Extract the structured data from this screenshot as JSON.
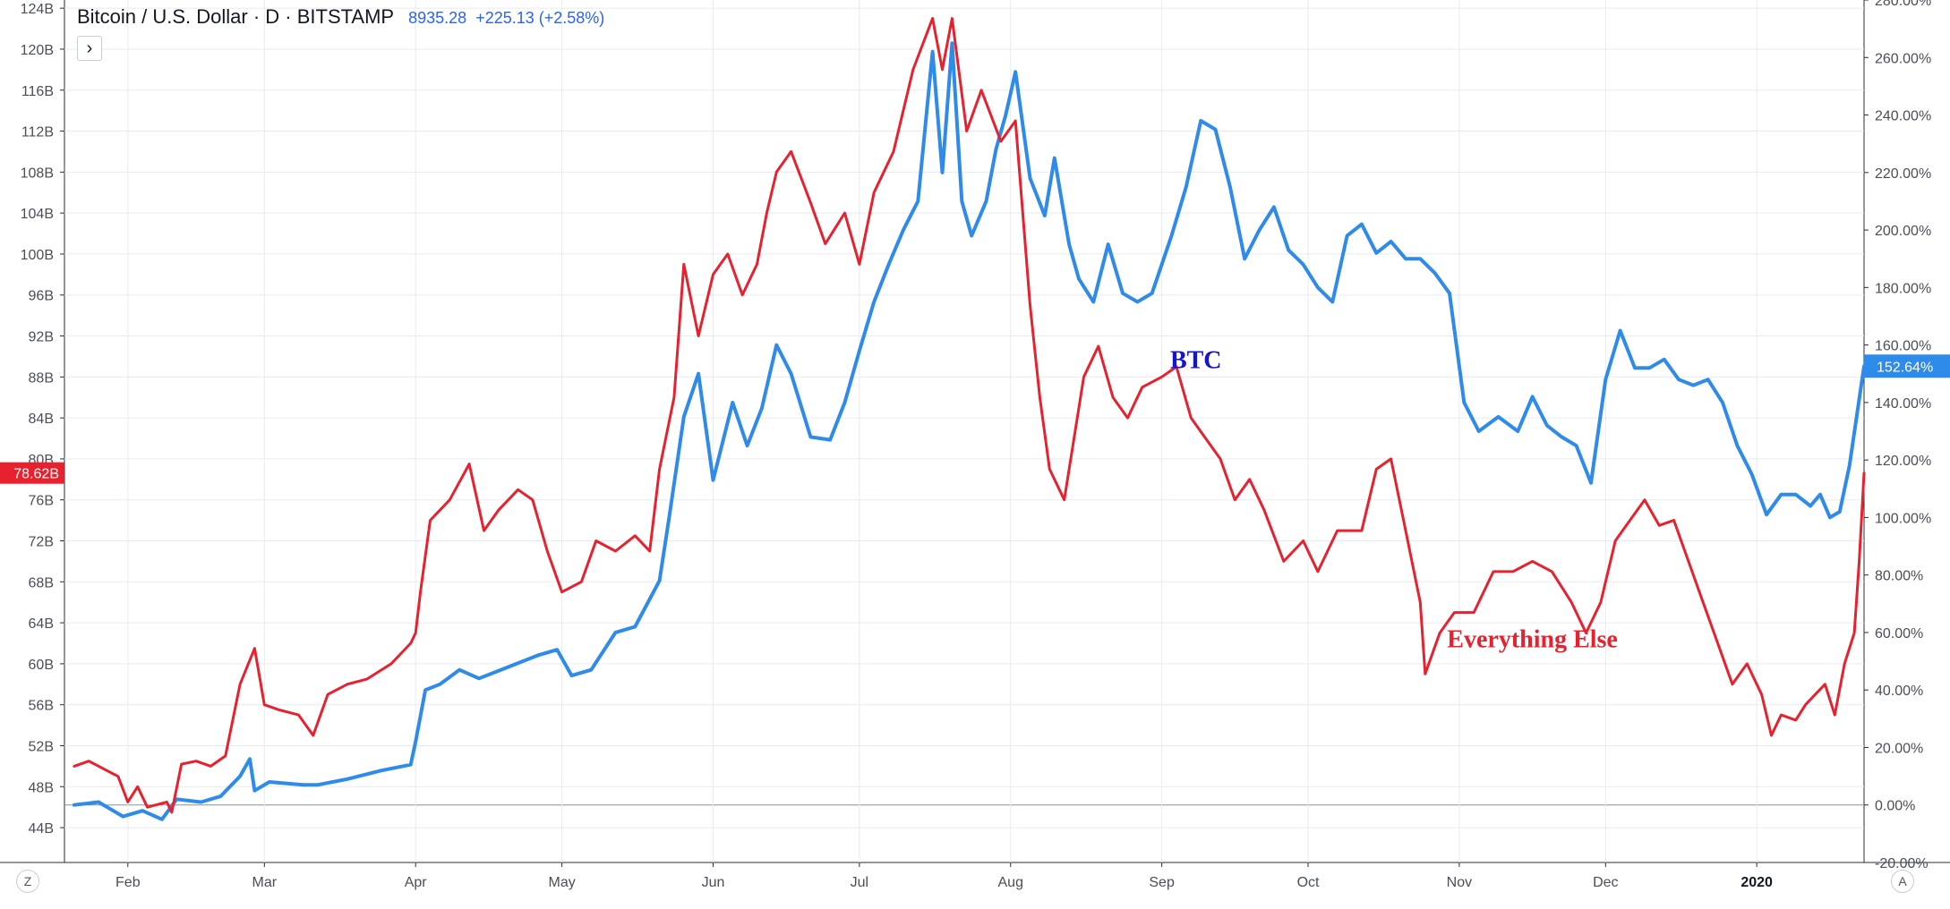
{
  "header": {
    "symbol": "Bitcoin / U.S. Dollar · D · BITSTAMP",
    "price": "8935.28",
    "change": "+225.13 (+2.58%)",
    "expand_icon": "chevron-right-icon"
  },
  "bottom_left_button": "Z",
  "bottom_right_button": "A",
  "chart_data": {
    "type": "line",
    "left_axis": {
      "ticks": [
        "124B",
        "120B",
        "116B",
        "112B",
        "108B",
        "104B",
        "100B",
        "96B",
        "92B",
        "88B",
        "84B",
        "80B",
        "76B",
        "72B",
        "68B",
        "64B",
        "60B",
        "56B",
        "52B",
        "48B",
        "44B"
      ],
      "ylim": [
        40.6,
        124.8
      ]
    },
    "right_axis": {
      "ticks": [
        "280.00%",
        "260.00%",
        "240.00%",
        "220.00%",
        "200.00%",
        "180.00%",
        "160.00%",
        "140.00%",
        "120.00%",
        "100.00%",
        "80.00%",
        "60.00%",
        "40.00%",
        "20.00%",
        "0.00%",
        "-20.00%"
      ],
      "ylim": [
        -20,
        280
      ]
    },
    "x_ticks": [
      "Feb",
      "Mar",
      "Apr",
      "May",
      "Jun",
      "Jul",
      "Aug",
      "Sep",
      "Oct",
      "Nov",
      "Dec",
      "2020"
    ],
    "xlim": [
      "2019-01-19",
      "2020-01-23"
    ],
    "grid": true,
    "series": [
      {
        "name": "BTC",
        "color": "#2f8bea",
        "axis": "right",
        "last_value_label": "152.64%",
        "points": [
          [
            "2019-01-21",
            0
          ],
          [
            "2019-01-26",
            1
          ],
          [
            "2019-01-31",
            -4
          ],
          [
            "2019-02-04",
            -2
          ],
          [
            "2019-02-08",
            -5
          ],
          [
            "2019-02-11",
            2
          ],
          [
            "2019-02-16",
            1
          ],
          [
            "2019-02-20",
            3
          ],
          [
            "2019-02-24",
            10
          ],
          [
            "2019-02-26",
            16
          ],
          [
            "2019-02-27",
            5
          ],
          [
            "2019-03-02",
            8
          ],
          [
            "2019-03-09",
            7
          ],
          [
            "2019-03-12",
            7
          ],
          [
            "2019-03-18",
            9
          ],
          [
            "2019-03-25",
            12
          ],
          [
            "2019-03-31",
            14
          ],
          [
            "2019-04-01",
            22
          ],
          [
            "2019-04-03",
            40
          ],
          [
            "2019-04-06",
            42
          ],
          [
            "2019-04-10",
            47
          ],
          [
            "2019-04-14",
            44
          ],
          [
            "2019-04-20",
            48
          ],
          [
            "2019-04-26",
            52
          ],
          [
            "2019-04-30",
            54
          ],
          [
            "2019-05-03",
            45
          ],
          [
            "2019-05-07",
            47
          ],
          [
            "2019-05-12",
            60
          ],
          [
            "2019-05-16",
            62
          ],
          [
            "2019-05-21",
            78
          ],
          [
            "2019-05-23",
            100
          ],
          [
            "2019-05-26",
            135
          ],
          [
            "2019-05-29",
            150
          ],
          [
            "2019-06-01",
            113
          ],
          [
            "2019-06-05",
            140
          ],
          [
            "2019-06-08",
            125
          ],
          [
            "2019-06-11",
            138
          ],
          [
            "2019-06-14",
            160
          ],
          [
            "2019-06-17",
            150
          ],
          [
            "2019-06-21",
            128
          ],
          [
            "2019-06-25",
            127
          ],
          [
            "2019-06-28",
            140
          ],
          [
            "2019-07-01",
            158
          ],
          [
            "2019-07-04",
            175
          ],
          [
            "2019-07-07",
            188
          ],
          [
            "2019-07-10",
            200
          ],
          [
            "2019-07-13",
            210
          ],
          [
            "2019-07-16",
            262
          ],
          [
            "2019-07-18",
            220
          ],
          [
            "2019-07-20",
            265
          ],
          [
            "2019-07-22",
            210
          ],
          [
            "2019-07-24",
            198
          ],
          [
            "2019-07-27",
            210
          ],
          [
            "2019-07-29",
            228
          ],
          [
            "2019-07-31",
            240
          ],
          [
            "2019-08-02",
            255
          ],
          [
            "2019-08-05",
            218
          ],
          [
            "2019-08-08",
            205
          ],
          [
            "2019-08-10",
            225
          ],
          [
            "2019-08-13",
            195
          ],
          [
            "2019-08-15",
            183
          ],
          [
            "2019-08-18",
            175
          ],
          [
            "2019-08-21",
            195
          ],
          [
            "2019-08-24",
            178
          ],
          [
            "2019-08-27",
            175
          ],
          [
            "2019-08-30",
            178
          ],
          [
            "2019-09-03",
            198
          ],
          [
            "2019-09-06",
            215
          ],
          [
            "2019-09-09",
            238
          ],
          [
            "2019-09-12",
            235
          ],
          [
            "2019-09-15",
            215
          ],
          [
            "2019-09-18",
            190
          ],
          [
            "2019-09-21",
            200
          ],
          [
            "2019-09-24",
            208
          ],
          [
            "2019-09-27",
            193
          ],
          [
            "2019-09-30",
            188
          ],
          [
            "2019-10-03",
            180
          ],
          [
            "2019-10-06",
            175
          ],
          [
            "2019-10-09",
            198
          ],
          [
            "2019-10-12",
            202
          ],
          [
            "2019-10-15",
            192
          ],
          [
            "2019-10-18",
            196
          ],
          [
            "2019-10-21",
            190
          ],
          [
            "2019-10-24",
            190
          ],
          [
            "2019-10-27",
            185
          ],
          [
            "2019-10-30",
            178
          ],
          [
            "2019-11-02",
            140
          ],
          [
            "2019-11-05",
            130
          ],
          [
            "2019-11-09",
            135
          ],
          [
            "2019-11-13",
            130
          ],
          [
            "2019-11-16",
            142
          ],
          [
            "2019-11-19",
            132
          ],
          [
            "2019-11-22",
            128
          ],
          [
            "2019-11-25",
            125
          ],
          [
            "2019-11-28",
            112
          ],
          [
            "2019-12-01",
            148
          ],
          [
            "2019-12-04",
            165
          ],
          [
            "2019-12-07",
            152
          ],
          [
            "2019-12-10",
            152
          ],
          [
            "2019-12-13",
            155
          ],
          [
            "2019-12-16",
            148
          ],
          [
            "2019-12-19",
            146
          ],
          [
            "2019-12-22",
            148
          ],
          [
            "2019-12-25",
            140
          ],
          [
            "2019-12-28",
            125
          ],
          [
            "2019-12-31",
            115
          ],
          [
            "2020-01-03",
            101
          ],
          [
            "2020-01-06",
            108
          ],
          [
            "2020-01-09",
            108
          ],
          [
            "2020-01-12",
            104
          ],
          [
            "2020-01-14",
            108
          ],
          [
            "2020-01-16",
            100
          ],
          [
            "2020-01-18",
            102
          ],
          [
            "2020-01-20",
            118
          ],
          [
            "2020-01-23",
            152.64
          ]
        ]
      },
      {
        "name": "Everything Else",
        "color": "#e8212e",
        "axis": "left",
        "last_value_label": "78.62B",
        "points": [
          [
            "2019-01-21",
            50.0
          ],
          [
            "2019-01-24",
            50.5
          ],
          [
            "2019-01-30",
            49.0
          ],
          [
            "2019-02-01",
            46.5
          ],
          [
            "2019-02-03",
            48.0
          ],
          [
            "2019-02-05",
            46.0
          ],
          [
            "2019-02-09",
            46.5
          ],
          [
            "2019-02-10",
            45.5
          ],
          [
            "2019-02-12",
            50.2
          ],
          [
            "2019-02-15",
            50.5
          ],
          [
            "2019-02-18",
            50.0
          ],
          [
            "2019-02-21",
            51.0
          ],
          [
            "2019-02-24",
            58.0
          ],
          [
            "2019-02-27",
            61.5
          ],
          [
            "2019-03-01",
            56.0
          ],
          [
            "2019-03-04",
            55.5
          ],
          [
            "2019-03-08",
            55.0
          ],
          [
            "2019-03-11",
            53.0
          ],
          [
            "2019-03-14",
            57.0
          ],
          [
            "2019-03-18",
            58.0
          ],
          [
            "2019-03-22",
            58.5
          ],
          [
            "2019-03-27",
            60.0
          ],
          [
            "2019-03-31",
            62.0
          ],
          [
            "2019-04-01",
            63.0
          ],
          [
            "2019-04-02",
            67.0
          ],
          [
            "2019-04-04",
            74.0
          ],
          [
            "2019-04-08",
            76.0
          ],
          [
            "2019-04-12",
            79.5
          ],
          [
            "2019-04-15",
            73.0
          ],
          [
            "2019-04-18",
            75.0
          ],
          [
            "2019-04-22",
            77.0
          ],
          [
            "2019-04-25",
            76.0
          ],
          [
            "2019-04-28",
            71.0
          ],
          [
            "2019-05-01",
            67.0
          ],
          [
            "2019-05-05",
            68.0
          ],
          [
            "2019-05-08",
            72.0
          ],
          [
            "2019-05-12",
            71.0
          ],
          [
            "2019-05-16",
            72.5
          ],
          [
            "2019-05-19",
            71.0
          ],
          [
            "2019-05-21",
            79.0
          ],
          [
            "2019-05-24",
            86.0
          ],
          [
            "2019-05-26",
            99.0
          ],
          [
            "2019-05-29",
            92.0
          ],
          [
            "2019-06-01",
            98.0
          ],
          [
            "2019-06-04",
            100.0
          ],
          [
            "2019-06-07",
            96.0
          ],
          [
            "2019-06-10",
            99.0
          ],
          [
            "2019-06-12",
            104.0
          ],
          [
            "2019-06-14",
            108.0
          ],
          [
            "2019-06-17",
            110.0
          ],
          [
            "2019-06-21",
            105.0
          ],
          [
            "2019-06-24",
            101.0
          ],
          [
            "2019-06-28",
            104.0
          ],
          [
            "2019-07-01",
            99.0
          ],
          [
            "2019-07-04",
            106.0
          ],
          [
            "2019-07-08",
            110.0
          ],
          [
            "2019-07-12",
            118.0
          ],
          [
            "2019-07-16",
            123.0
          ],
          [
            "2019-07-18",
            118.0
          ],
          [
            "2019-07-20",
            123.0
          ],
          [
            "2019-07-23",
            112.0
          ],
          [
            "2019-07-26",
            116.0
          ],
          [
            "2019-07-30",
            111.0
          ],
          [
            "2019-08-02",
            113.0
          ],
          [
            "2019-08-05",
            95.0
          ],
          [
            "2019-08-07",
            86.0
          ],
          [
            "2019-08-09",
            79.0
          ],
          [
            "2019-08-12",
            76.0
          ],
          [
            "2019-08-16",
            88.0
          ],
          [
            "2019-08-19",
            91.0
          ],
          [
            "2019-08-22",
            86.0
          ],
          [
            "2019-08-25",
            84.0
          ],
          [
            "2019-08-28",
            87.0
          ],
          [
            "2019-09-01",
            88.0
          ],
          [
            "2019-09-04",
            89.0
          ],
          [
            "2019-09-07",
            84.0
          ],
          [
            "2019-09-10",
            82.0
          ],
          [
            "2019-09-13",
            80.0
          ],
          [
            "2019-09-16",
            76.0
          ],
          [
            "2019-09-19",
            78.0
          ],
          [
            "2019-09-22",
            75.0
          ],
          [
            "2019-09-26",
            70.0
          ],
          [
            "2019-09-30",
            72.0
          ],
          [
            "2019-10-03",
            69.0
          ],
          [
            "2019-10-07",
            73.0
          ],
          [
            "2019-10-12",
            73.0
          ],
          [
            "2019-10-15",
            79.0
          ],
          [
            "2019-10-18",
            80.0
          ],
          [
            "2019-10-21",
            73.0
          ],
          [
            "2019-10-24",
            66.0
          ],
          [
            "2019-10-25",
            59.0
          ],
          [
            "2019-10-28",
            63.0
          ],
          [
            "2019-10-31",
            65.0
          ],
          [
            "2019-11-04",
            65.0
          ],
          [
            "2019-11-08",
            69.0
          ],
          [
            "2019-11-12",
            69.0
          ],
          [
            "2019-11-16",
            70.0
          ],
          [
            "2019-11-20",
            69.0
          ],
          [
            "2019-11-24",
            66.0
          ],
          [
            "2019-11-27",
            63.0
          ],
          [
            "2019-11-30",
            66.0
          ],
          [
            "2019-12-03",
            72.0
          ],
          [
            "2019-12-06",
            74.0
          ],
          [
            "2019-12-09",
            76.0
          ],
          [
            "2019-12-12",
            73.5
          ],
          [
            "2019-12-15",
            74.0
          ],
          [
            "2019-12-18",
            70.0
          ],
          [
            "2019-12-21",
            66.0
          ],
          [
            "2019-12-24",
            62.0
          ],
          [
            "2019-12-27",
            58.0
          ],
          [
            "2019-12-30",
            60.0
          ],
          [
            "2020-01-02",
            57.0
          ],
          [
            "2020-01-04",
            53.0
          ],
          [
            "2020-01-06",
            55.0
          ],
          [
            "2020-01-09",
            54.5
          ],
          [
            "2020-01-11",
            56.0
          ],
          [
            "2020-01-13",
            57.0
          ],
          [
            "2020-01-15",
            58.0
          ],
          [
            "2020-01-17",
            55.0
          ],
          [
            "2020-01-19",
            60.0
          ],
          [
            "2020-01-21",
            63.0
          ],
          [
            "2020-01-22",
            70.0
          ],
          [
            "2020-01-23",
            78.62
          ]
        ]
      }
    ],
    "annotations": [
      {
        "text": "BTC",
        "color": "#1414d2"
      },
      {
        "text": "Everything Else",
        "color": "#e8212e"
      }
    ]
  }
}
